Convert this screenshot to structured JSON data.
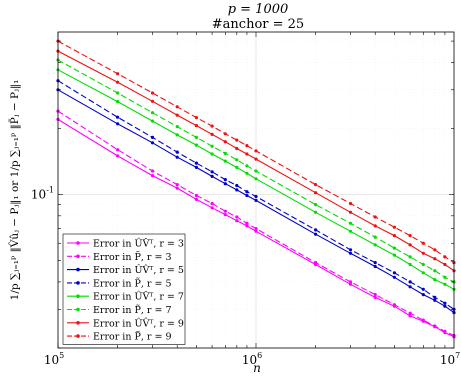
{
  "chart_data": {
    "type": "line",
    "title_lines": [
      "p = 1000",
      "#anchor = 25"
    ],
    "xlabel": "n",
    "ylabel": "1/p ∑ⱼ₌₁ᵖ ‖V̂ûⱼ − Pⱼ‖₁ or 1/p ∑ⱼ₌₁ᵖ ‖P̃ⱼ − Pⱼ‖₁",
    "x_scale": "log",
    "y_scale": "log",
    "xlim": [
      100000,
      10000000
    ],
    "ylim": [
      0.02,
      0.55
    ],
    "x_ticks": [
      {
        "base": "10",
        "exp": "5",
        "value": 100000
      },
      {
        "base": "10",
        "exp": "6",
        "value": 1000000
      },
      {
        "base": "10",
        "exp": "7",
        "value": 10000000
      }
    ],
    "y_ticks": [
      {
        "base": "10",
        "exp": "-1",
        "value": 0.1
      }
    ],
    "grid": true,
    "legend_position": "bottom-left",
    "x": [
      100000,
      200000,
      300000,
      400000,
      500000,
      600000,
      700000,
      800000,
      900000,
      1000000,
      2000000,
      3000000,
      4000000,
      5000000,
      6000000,
      7000000,
      8000000,
      9000000,
      10000000
    ],
    "series": [
      {
        "name": "Error in ÛV̂ᵀ, r = 3",
        "color": "#ff00ff",
        "dash": false,
        "values": [
          0.22,
          0.15,
          0.122,
          0.107,
          0.095,
          0.087,
          0.081,
          0.076,
          0.072,
          0.068,
          0.048,
          0.039,
          0.034,
          0.031,
          0.028,
          0.0265,
          0.025,
          0.0235,
          0.0225
        ]
      },
      {
        "name": "Error in P̃, r = 3",
        "color": "#ff00ff",
        "dash": true,
        "values": [
          0.24,
          0.16,
          0.128,
          0.111,
          0.099,
          0.091,
          0.084,
          0.079,
          0.074,
          0.07,
          0.049,
          0.04,
          0.035,
          0.0315,
          0.0288,
          0.0268,
          0.0252,
          0.0238,
          0.0228
        ]
      },
      {
        "name": "Error in ÛV̂ᵀ, r = 5",
        "color": "#0000cc",
        "dash": false,
        "values": [
          0.3,
          0.21,
          0.172,
          0.148,
          0.133,
          0.121,
          0.112,
          0.105,
          0.099,
          0.094,
          0.066,
          0.054,
          0.047,
          0.042,
          0.038,
          0.035,
          0.033,
          0.031,
          0.029
        ]
      },
      {
        "name": "Error in P̃, r = 5",
        "color": "#0000cc",
        "dash": true,
        "values": [
          0.33,
          0.225,
          0.182,
          0.156,
          0.139,
          0.127,
          0.117,
          0.11,
          0.103,
          0.098,
          0.069,
          0.056,
          0.049,
          0.044,
          0.04,
          0.037,
          0.034,
          0.032,
          0.03
        ]
      },
      {
        "name": "Error in ÛV̂ᵀ, r = 7",
        "color": "#00dd00",
        "dash": false,
        "values": [
          0.37,
          0.265,
          0.216,
          0.187,
          0.168,
          0.153,
          0.142,
          0.133,
          0.125,
          0.118,
          0.083,
          0.068,
          0.059,
          0.053,
          0.048,
          0.044,
          0.041,
          0.039,
          0.037
        ]
      },
      {
        "name": "Error in P̃, r = 7",
        "color": "#00dd00",
        "dash": true,
        "values": [
          0.41,
          0.29,
          0.236,
          0.204,
          0.182,
          0.166,
          0.154,
          0.144,
          0.135,
          0.128,
          0.09,
          0.074,
          0.064,
          0.057,
          0.052,
          0.048,
          0.045,
          0.042,
          0.04
        ]
      },
      {
        "name": "Error in ÛV̂ᵀ, r = 9",
        "color": "#ee1111",
        "dash": false,
        "values": [
          0.45,
          0.325,
          0.266,
          0.23,
          0.206,
          0.188,
          0.174,
          0.162,
          0.153,
          0.145,
          0.102,
          0.083,
          0.072,
          0.065,
          0.059,
          0.054,
          0.051,
          0.048,
          0.045
        ]
      },
      {
        "name": "Error in P̃, r = 9",
        "color": "#ee1111",
        "dash": true,
        "values": [
          0.5,
          0.355,
          0.29,
          0.251,
          0.224,
          0.205,
          0.189,
          0.177,
          0.167,
          0.158,
          0.111,
          0.091,
          0.079,
          0.071,
          0.065,
          0.06,
          0.056,
          0.052,
          0.049
        ]
      }
    ]
  }
}
